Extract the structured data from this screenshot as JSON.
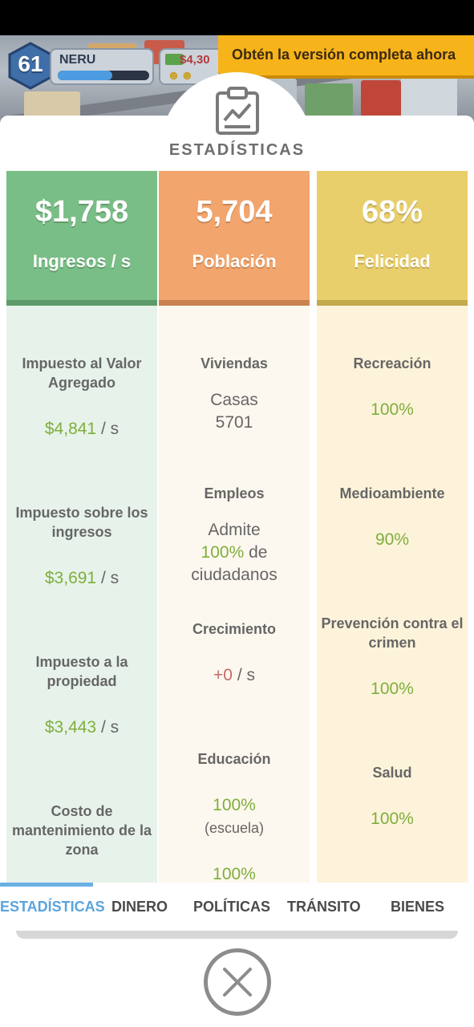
{
  "hud": {
    "level": "61",
    "player_name": "NERU",
    "xp_progress": 0.6,
    "money": "$4,30"
  },
  "promo": {
    "label": "Obtén la versión completa ahora"
  },
  "panel": {
    "title": "ESTADÍSTICAS",
    "icon": "clipboard-chart-icon"
  },
  "columns": {
    "income": {
      "value": "$1,758",
      "label": "Ingresos / s",
      "items": [
        {
          "label": "Impuesto al Valor Agregado",
          "amount": "$4,841",
          "unit": "/ s"
        },
        {
          "label": "Impuesto sobre los ingresos",
          "amount": "$3,691",
          "unit": "/ s"
        },
        {
          "label": "Impuesto a la propiedad",
          "amount": "$3,443",
          "unit": "/ s"
        },
        {
          "label": "Costo de mantenimiento de la zona"
        }
      ]
    },
    "population": {
      "value": "5,704",
      "label": "Población",
      "items": [
        {
          "label": "Viviendas",
          "line1": "Casas",
          "line2": "5701"
        },
        {
          "label": "Empleos",
          "line1": "Admite",
          "pct": "100%",
          "line2_suffix": "de",
          "line3": "ciudadanos"
        },
        {
          "label": "Crecimiento",
          "amount": "+0",
          "unit": "/ s"
        },
        {
          "label": "Educación",
          "pct": "100%",
          "note": "(escuela)",
          "pct2": "100%"
        }
      ]
    },
    "happiness": {
      "value": "68%",
      "label": "Felicidad",
      "items": [
        {
          "label": "Recreación",
          "pct": "100%"
        },
        {
          "label": "Medioambiente",
          "pct": "90%"
        },
        {
          "label": "Prevención contra el crimen",
          "pct": "100%"
        },
        {
          "label": "Salud",
          "pct": "100%"
        }
      ]
    }
  },
  "tabs": [
    "ESTADÍSTICAS",
    "DINERO",
    "POLÍTICAS",
    "TRÁNSITO",
    "BIENES"
  ],
  "active_tab": "ESTADÍSTICAS",
  "close_icon": "close-icon",
  "colors": {
    "income": "#79be86",
    "population": "#f2a56c",
    "happiness": "#e9cf6b",
    "positive": "#7fae3c",
    "accent": "#5ba4dc",
    "promo": "#f7b31a"
  }
}
